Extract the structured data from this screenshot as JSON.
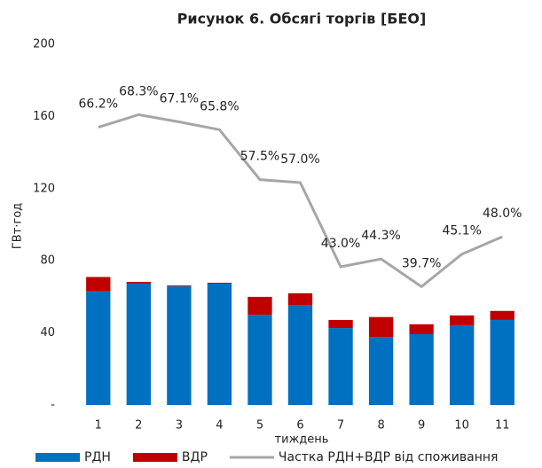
{
  "chart_data": {
    "type": "bar",
    "stacked": true,
    "title": "Рисунок 6. Обсягі торгів [БЕО]",
    "x_label": "тиждень",
    "y_label": "ГВт·год",
    "categories": [
      "1",
      "2",
      "3",
      "4",
      "5",
      "6",
      "7",
      "8",
      "9",
      "10",
      "11"
    ],
    "series": [
      {
        "name": "РДН",
        "type": "bar",
        "color": "#0070c0",
        "values": [
          63,
          67.3,
          65.8,
          67.3,
          50,
          55.5,
          42.7,
          37.8,
          39.3,
          44.2,
          47.2
        ]
      },
      {
        "name": "ВДР",
        "type": "bar",
        "color": "#c00000",
        "values": [
          8,
          1,
          0.5,
          0.5,
          10,
          6.5,
          4.5,
          11,
          5.5,
          5.5,
          5
        ]
      },
      {
        "name": "Частка РДН+ВДР від споживання",
        "type": "line",
        "axis": "y2",
        "color": "#a6a6a6",
        "values": [
          66.2,
          68.3,
          67.1,
          65.8,
          57.5,
          57.0,
          43.0,
          44.3,
          39.7,
          45.1,
          48.0
        ],
        "value_labels": [
          "66.2%",
          "68.3%",
          "67.1%",
          "65.8%",
          "57.5%",
          "57.0%",
          "43.0%",
          "44.3%",
          "39.7%",
          "45.1%",
          "48.0%"
        ]
      }
    ],
    "ylim": [
      0,
      200
    ],
    "yticks": [
      {
        "value": 0,
        "label": "-"
      },
      40,
      80,
      120,
      160,
      200
    ],
    "y2lim": [
      20,
      80
    ],
    "grid": false,
    "legend": "bottom"
  }
}
